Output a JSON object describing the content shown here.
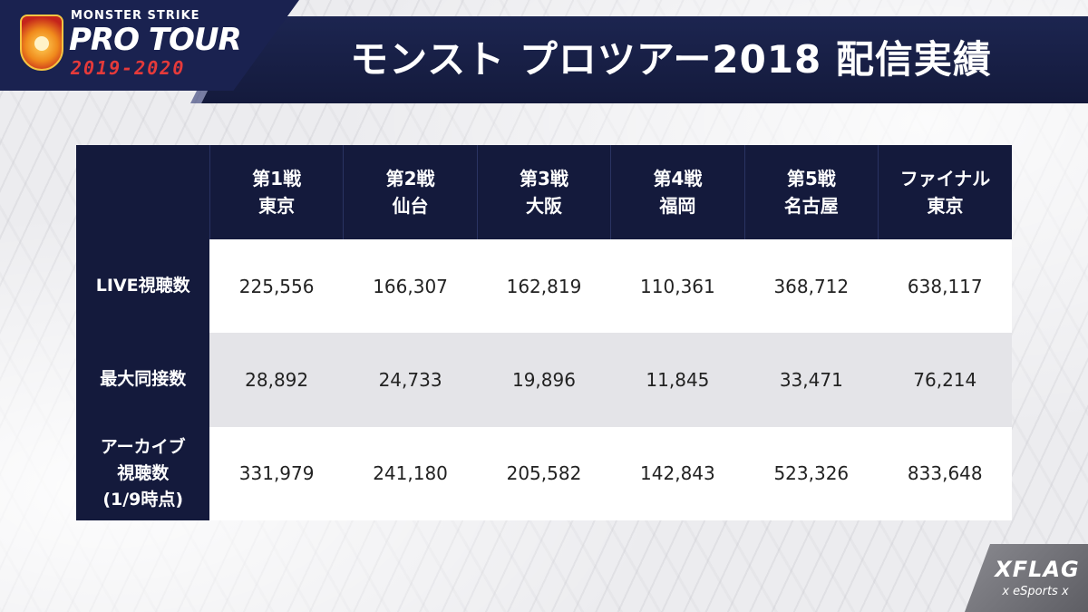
{
  "logo": {
    "subtitle": "MONSTER STRIKE",
    "main": "PRO TOUR",
    "years": "2019-2020",
    "emblem_icon": "monster-emblem-icon"
  },
  "header": {
    "title": "モンスト プロツアー2018 配信実績"
  },
  "table": {
    "columns": [
      {
        "line1": "第1戦",
        "line2": "東京"
      },
      {
        "line1": "第2戦",
        "line2": "仙台"
      },
      {
        "line1": "第3戦",
        "line2": "大阪"
      },
      {
        "line1": "第4戦",
        "line2": "福岡"
      },
      {
        "line1": "第5戦",
        "line2": "名古屋"
      },
      {
        "line1": "ファイナル",
        "line2": "東京"
      }
    ],
    "rows": [
      {
        "label": [
          "LIVE視聴数"
        ],
        "values": [
          "225,556",
          "166,307",
          "162,819",
          "110,361",
          "368,712",
          "638,117"
        ]
      },
      {
        "label": [
          "最大同接数"
        ],
        "values": [
          "28,892",
          "24,733",
          "19,896",
          "11,845",
          "33,471",
          "76,214"
        ]
      },
      {
        "label": [
          "アーカイブ",
          "視聴数",
          "(1/9時点)"
        ],
        "values": [
          "331,979",
          "241,180",
          "205,582",
          "142,843",
          "523,326",
          "833,648"
        ]
      }
    ]
  },
  "footer": {
    "brand": "XFLAG",
    "sub": "x eSports x"
  },
  "colors": {
    "navy": "#141a3c",
    "white_row": "#ffffff",
    "gray_row": "#e4e4e8",
    "logo_red": "#e53a3a"
  }
}
